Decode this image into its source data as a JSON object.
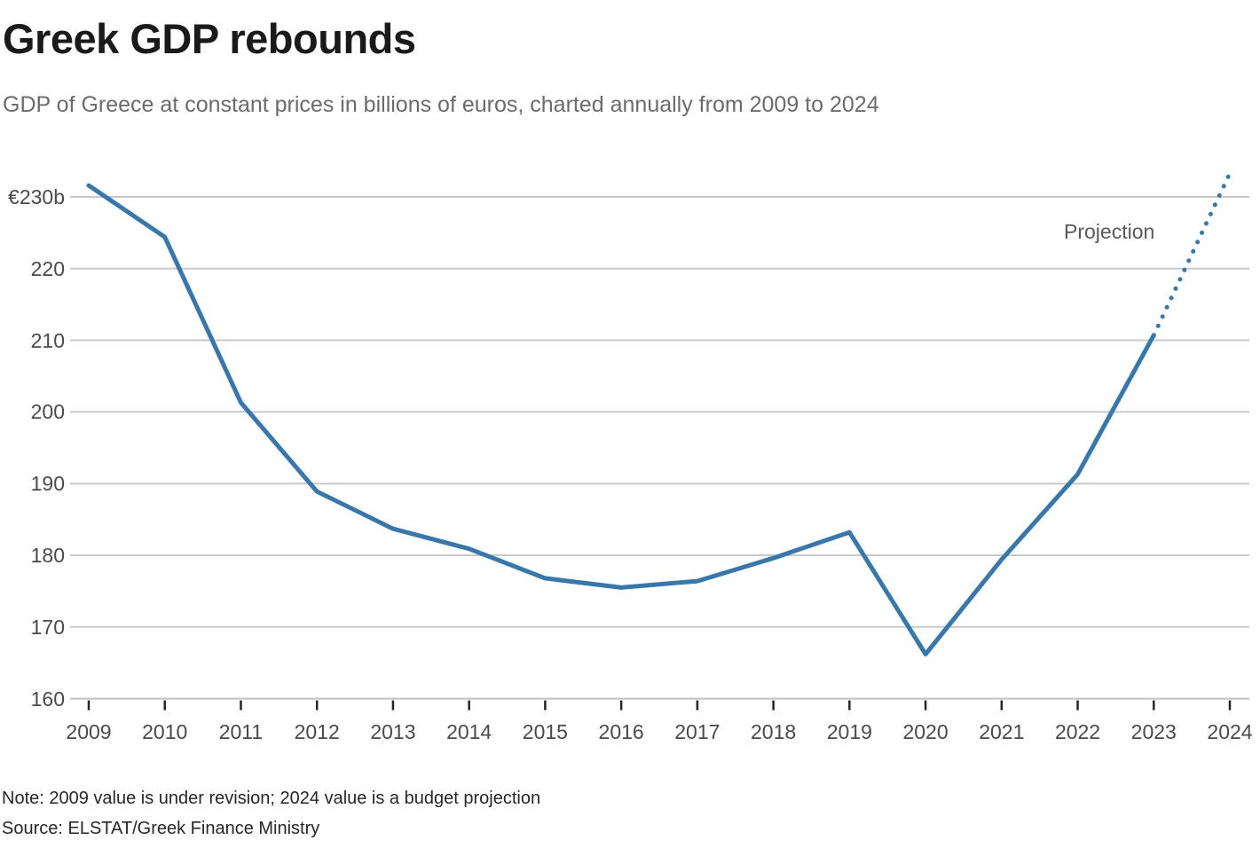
{
  "chart_data": {
    "type": "line",
    "title": "Greek GDP rebounds",
    "subtitle": "GDP of Greece at constant prices in billions of euros, charted annually from 2009 to 2024",
    "x": [
      2009,
      2010,
      2011,
      2012,
      2013,
      2014,
      2015,
      2016,
      2017,
      2018,
      2019,
      2020,
      2021,
      2022,
      2023,
      2024
    ],
    "series": [
      {
        "name": "GDP of Greece at constant prices (billions of euros)",
        "values": [
          231.6,
          224.4,
          201.3,
          188.9,
          183.7,
          180.9,
          176.8,
          175.5,
          176.4,
          179.6,
          183.2,
          166.2,
          179.4,
          191.3,
          210.7,
          233.3
        ]
      }
    ],
    "projection": {
      "label": "Projection",
      "from_x": 2023,
      "to_x": 2024,
      "style": "dotted",
      "note": "2024 segment drawn as dotted projection"
    },
    "x_axis": {
      "tick_labels": [
        "2009",
        "2010",
        "2011",
        "2012",
        "2013",
        "2014",
        "2015",
        "2016",
        "2017",
        "2018",
        "2019",
        "2020",
        "2021",
        "2022",
        "2023",
        "2024"
      ]
    },
    "y_axis": {
      "tick_labels": [
        "€230b",
        "220",
        "210",
        "200",
        "190",
        "180",
        "170",
        "160"
      ],
      "tick_values": [
        230,
        220,
        210,
        200,
        190,
        180,
        170,
        160
      ],
      "range": [
        160,
        235
      ],
      "grid": true
    },
    "legend_position": "none",
    "note": "Note: 2009 value is under revision; 2024 value is a budget projection",
    "source": "Source: ELSTAT/Greek Finance Ministry",
    "colors": {
      "line": "#3578b0",
      "grid": "#c9c9c9",
      "axis": "#c2c2c2",
      "tick": "#262626",
      "title_text": "#1a1a1a",
      "subtitle_text": "#6b6b6b",
      "axis_label_text": "#4a4a4a",
      "projection_label_text": "#595959",
      "note_text": "#262626"
    }
  }
}
